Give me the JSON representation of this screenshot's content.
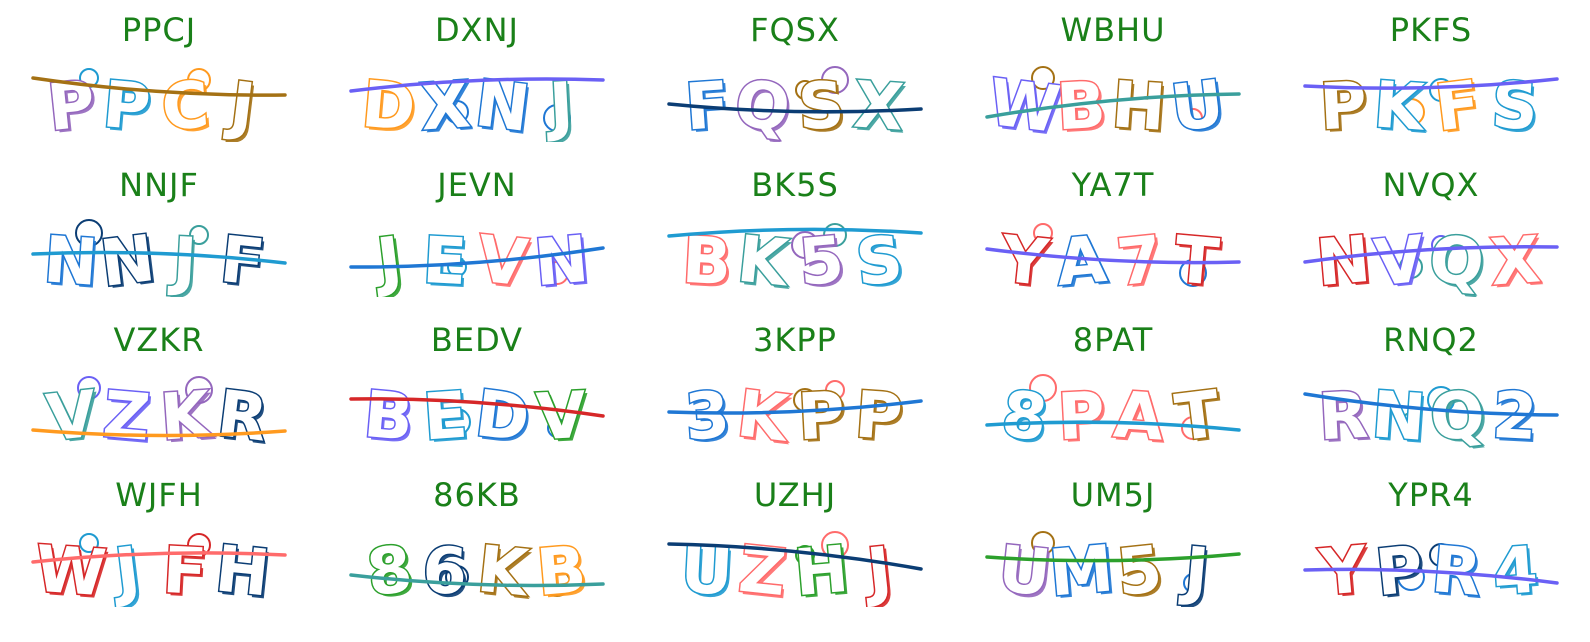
{
  "cells": [
    {
      "label": "PPCJ",
      "chars": [
        "P",
        "P",
        "C",
        "J"
      ],
      "colors": [
        "#9467bd",
        "#1f9bd1",
        "#ff9a1f",
        "#a47114"
      ],
      "line": "#a47114"
    },
    {
      "label": "DXNJ",
      "chars": [
        "D",
        "X",
        "N",
        "J"
      ],
      "colors": [
        "#ff9a1f",
        "#1f77d4",
        "#1f77d4",
        "#3a9f9c"
      ],
      "line": "#6a60f5"
    },
    {
      "label": "FQSX",
      "chars": [
        "F",
        "Q",
        "S",
        "X"
      ],
      "colors": [
        "#1f77d4",
        "#9467bd",
        "#a47114",
        "#3a9f9c"
      ],
      "line": "#0b3d74"
    },
    {
      "label": "WBHU",
      "chars": [
        "W",
        "B",
        "H",
        "U"
      ],
      "colors": [
        "#6a60f5",
        "#ff6b6b",
        "#a47114",
        "#1f77d4"
      ],
      "line": "#3a9f9c"
    },
    {
      "label": "PKFS",
      "chars": [
        "P",
        "K",
        "F",
        "S"
      ],
      "colors": [
        "#a47114",
        "#1f9bd1",
        "#ff9a1f",
        "#1f9bd1"
      ],
      "line": "#6a60f5"
    },
    {
      "label": "NNJF",
      "chars": [
        "N",
        "N",
        "J",
        "F"
      ],
      "colors": [
        "#1f77d4",
        "#0b3d74",
        "#3a9f9c",
        "#0b3d74"
      ],
      "line": "#1f9bd1"
    },
    {
      "label": "JEVN",
      "chars": [
        "J",
        "E",
        "V",
        "N"
      ],
      "colors": [
        "#2ca02c",
        "#1f9bd1",
        "#ff6b6b",
        "#6a60f5"
      ],
      "line": "#1f77d4"
    },
    {
      "label": "BK5S",
      "chars": [
        "B",
        "K",
        "5",
        "S"
      ],
      "colors": [
        "#ff6b6b",
        "#3a9f9c",
        "#9467bd",
        "#1f9bd1"
      ],
      "line": "#1f9bd1"
    },
    {
      "label": "YA7T",
      "chars": [
        "Y",
        "A",
        "7",
        "T"
      ],
      "colors": [
        "#d62728",
        "#1f77d4",
        "#ff6b6b",
        "#d62728"
      ],
      "line": "#6a60f5"
    },
    {
      "label": "NVQX",
      "chars": [
        "N",
        "V",
        "Q",
        "X"
      ],
      "colors": [
        "#d62728",
        "#6a60f5",
        "#3a9f9c",
        "#ff6b6b"
      ],
      "line": "#6a60f5"
    },
    {
      "label": "VZKR",
      "chars": [
        "V",
        "Z",
        "K",
        "R"
      ],
      "colors": [
        "#3a9f9c",
        "#6a60f5",
        "#9467bd",
        "#0b3d74"
      ],
      "line": "#ff9a1f"
    },
    {
      "label": "BEDV",
      "chars": [
        "B",
        "E",
        "D",
        "V"
      ],
      "colors": [
        "#6a60f5",
        "#1f9bd1",
        "#1f77d4",
        "#2ca02c"
      ],
      "line": "#d62728"
    },
    {
      "label": "3KPP",
      "chars": [
        "3",
        "K",
        "P",
        "P"
      ],
      "colors": [
        "#1f77d4",
        "#ff6b6b",
        "#a47114",
        "#a47114"
      ],
      "line": "#1f77d4"
    },
    {
      "label": "8PAT",
      "chars": [
        "8",
        "P",
        "A",
        "T"
      ],
      "colors": [
        "#1f9bd1",
        "#ff6b6b",
        "#ff6b6b",
        "#a47114"
      ],
      "line": "#1f9bd1"
    },
    {
      "label": "RNQ2",
      "chars": [
        "R",
        "N",
        "Q",
        "2"
      ],
      "colors": [
        "#9467bd",
        "#1f9bd1",
        "#3a9f9c",
        "#1f77d4"
      ],
      "line": "#1f77d4"
    },
    {
      "label": "WJFH",
      "chars": [
        "W",
        "J",
        "F",
        "H"
      ],
      "colors": [
        "#d62728",
        "#1f9bd1",
        "#d62728",
        "#0b3d74"
      ],
      "line": "#ff6b6b"
    },
    {
      "label": "86KB",
      "chars": [
        "8",
        "6",
        "K",
        "B"
      ],
      "colors": [
        "#2ca02c",
        "#0b3d74",
        "#a47114",
        "#ff9a1f"
      ],
      "line": "#3a9f9c"
    },
    {
      "label": "UZHJ",
      "chars": [
        "U",
        "Z",
        "H",
        "J"
      ],
      "colors": [
        "#1f9bd1",
        "#ff6b6b",
        "#2ca02c",
        "#d62728"
      ],
      "line": "#0b3d74"
    },
    {
      "label": "UM5J",
      "chars": [
        "U",
        "M",
        "5",
        "J"
      ],
      "colors": [
        "#9467bd",
        "#1f77d4",
        "#a47114",
        "#0b3d74"
      ],
      "line": "#2ca02c"
    },
    {
      "label": "YPR4",
      "chars": [
        "Y",
        "P",
        "R",
        "4"
      ],
      "colors": [
        "#d62728",
        "#0b3d74",
        "#1f77d4",
        "#1f9bd1"
      ],
      "line": "#6a60f5"
    }
  ]
}
